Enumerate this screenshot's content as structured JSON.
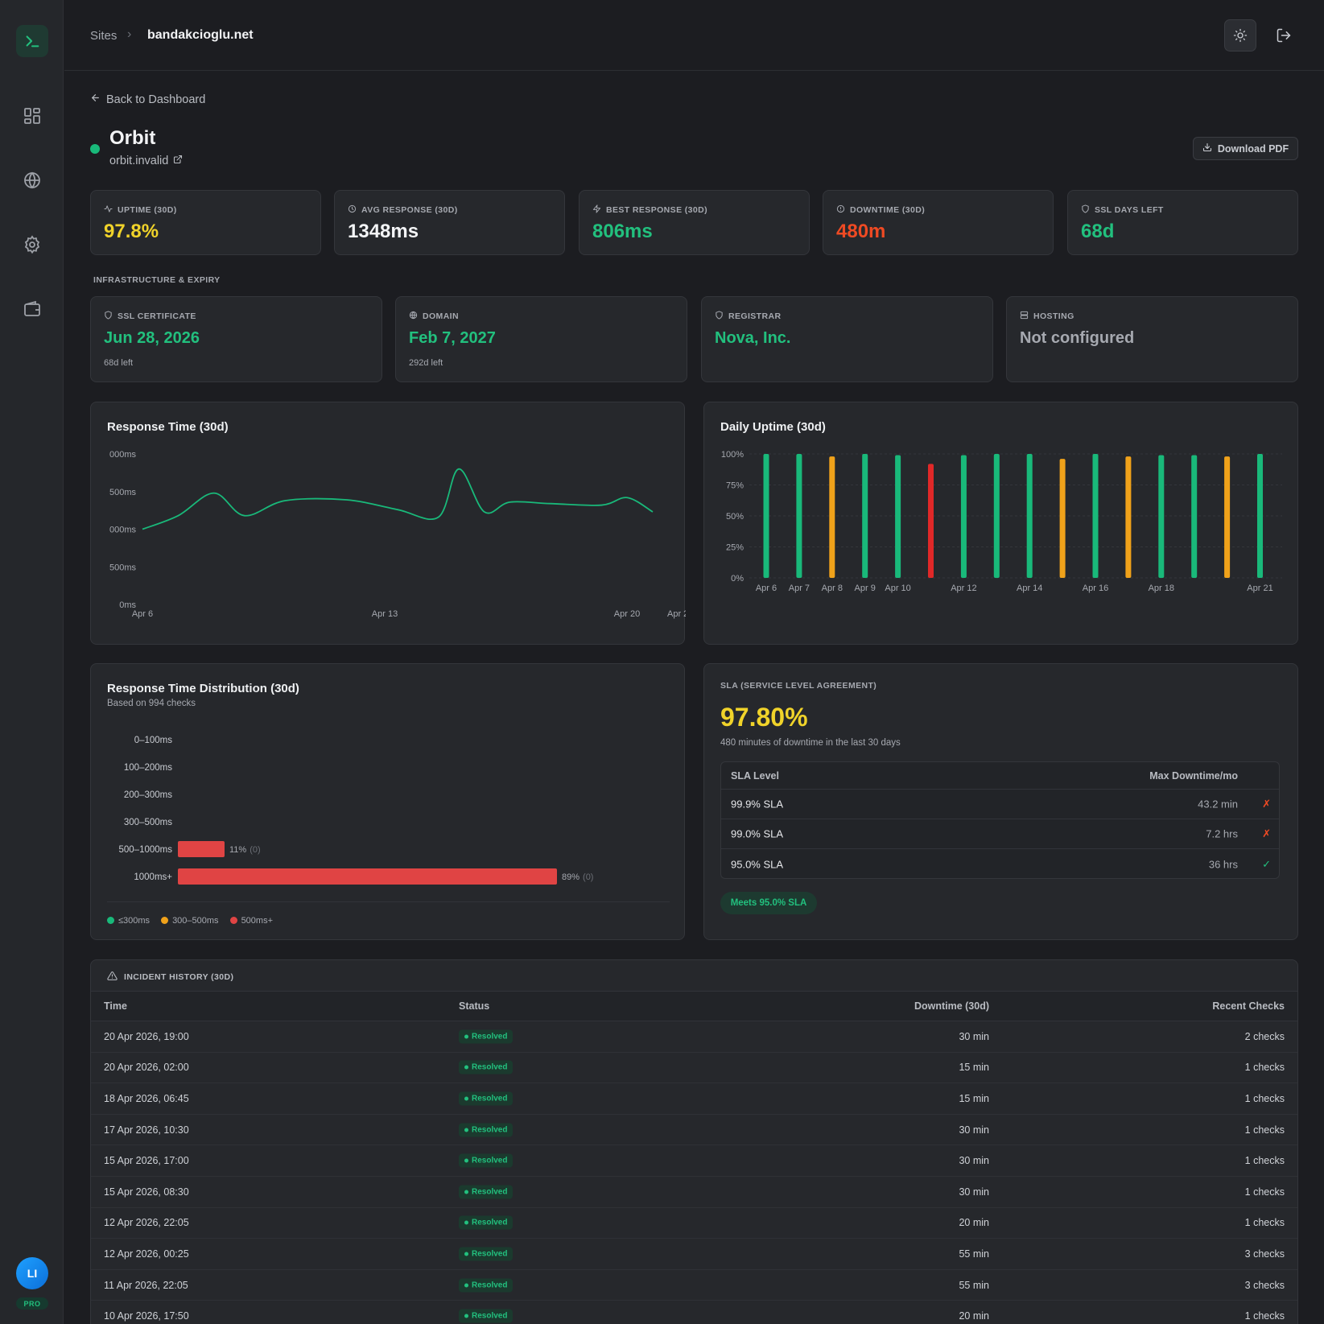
{
  "header": {
    "crumb_root": "Sites",
    "crumb_current": "bandakcioglu.net"
  },
  "nav": {
    "back_label": "Back to Dashboard",
    "download_label": "Download PDF"
  },
  "site": {
    "name": "Orbit",
    "url": "orbit.invalid",
    "status_color": "#19b97a"
  },
  "stats": [
    {
      "label": "UPTIME (30D)",
      "value": "97.8%",
      "color": "#f0d32a",
      "icon": "pulse-icon"
    },
    {
      "label": "AVG RESPONSE (30D)",
      "value": "1348ms",
      "color": "#f3f4f6",
      "icon": "clock-icon"
    },
    {
      "label": "BEST RESPONSE (30D)",
      "value": "806ms",
      "color": "#22c07e",
      "icon": "bolt-icon"
    },
    {
      "label": "DOWNTIME (30D)",
      "value": "480m",
      "color": "#ef4a23",
      "icon": "alert-circle-icon"
    },
    {
      "label": "SSL DAYS LEFT",
      "value": "68d",
      "color": "#22c07e",
      "icon": "shield-icon"
    }
  ],
  "infra": {
    "title": "INFRASTRUCTURE & EXPIRY",
    "items": [
      {
        "label": "SSL CERTIFICATE",
        "value": "Jun 28, 2026",
        "sub": "68d left",
        "color": "#22c07e",
        "icon": "shield-icon"
      },
      {
        "label": "DOMAIN",
        "value": "Feb 7, 2027",
        "sub": "292d left",
        "color": "#22c07e",
        "icon": "globe-icon"
      },
      {
        "label": "REGISTRAR",
        "value": "Nova, Inc.",
        "sub": "",
        "color": "#22c07e",
        "icon": "shield-icon"
      },
      {
        "label": "HOSTING",
        "value": "Not configured",
        "sub": "",
        "color": "#a6a9b0",
        "icon": "server-icon"
      }
    ]
  },
  "response_chart": {
    "title": "Response Time (30d)",
    "y_tick_labels": [
      "000ms",
      "500ms",
      "000ms",
      "500ms",
      "0ms"
    ],
    "x_tick_labels": [
      "Apr 6",
      "Apr 13",
      "Apr 20",
      "Apr 2"
    ]
  },
  "uptime_chart": {
    "title": "Daily Uptime (30d)",
    "y_tick_labels": [
      "100%",
      "75%",
      "50%",
      "25%",
      "0%"
    ]
  },
  "distribution": {
    "title": "Response Time Distribution (30d)",
    "subtitle": "Based on 994 checks",
    "legend": [
      {
        "label": "≤300ms",
        "color": "#19b97a"
      },
      {
        "label": "300–500ms",
        "color": "#f0a21a"
      },
      {
        "label": "500ms+",
        "color": "#e04444"
      }
    ]
  },
  "sla": {
    "label": "SLA (SERVICE LEVEL AGREEMENT)",
    "value": "97.80%",
    "subtitle": "480 minutes of downtime in the last 30 days",
    "col_level": "SLA Level",
    "col_max": "Max Downtime/mo",
    "rows": [
      {
        "level": "99.9% SLA",
        "max": "43.2 min",
        "mark": "✗",
        "color": "#ef4a23"
      },
      {
        "level": "99.0% SLA",
        "max": "7.2 hrs",
        "mark": "✗",
        "color": "#ef4a23"
      },
      {
        "level": "95.0% SLA",
        "max": "36 hrs",
        "mark": "✓",
        "color": "#22c07e"
      }
    ],
    "badge": "Meets 95.0% SLA"
  },
  "incidents": {
    "title": "INCIDENT HISTORY (30D)",
    "columns": {
      "time": "Time",
      "status": "Status",
      "downtime": "Downtime (30d)",
      "checks": "Recent Checks"
    },
    "rows": [
      {
        "time": "20 Apr 2026, 19:00",
        "status": "Resolved",
        "downtime": "30 min",
        "checks": "2 checks"
      },
      {
        "time": "20 Apr 2026, 02:00",
        "status": "Resolved",
        "downtime": "15 min",
        "checks": "1 checks"
      },
      {
        "time": "18 Apr 2026, 06:45",
        "status": "Resolved",
        "downtime": "15 min",
        "checks": "1 checks"
      },
      {
        "time": "17 Apr 2026, 10:30",
        "status": "Resolved",
        "downtime": "30 min",
        "checks": "1 checks"
      },
      {
        "time": "15 Apr 2026, 17:00",
        "status": "Resolved",
        "downtime": "30 min",
        "checks": "1 checks"
      },
      {
        "time": "15 Apr 2026, 08:30",
        "status": "Resolved",
        "downtime": "30 min",
        "checks": "1 checks"
      },
      {
        "time": "12 Apr 2026, 22:05",
        "status": "Resolved",
        "downtime": "20 min",
        "checks": "1 checks"
      },
      {
        "time": "12 Apr 2026, 00:25",
        "status": "Resolved",
        "downtime": "55 min",
        "checks": "3 checks"
      },
      {
        "time": "11 Apr 2026, 22:05",
        "status": "Resolved",
        "downtime": "55 min",
        "checks": "3 checks"
      },
      {
        "time": "10 Apr 2026, 17:50",
        "status": "Resolved",
        "downtime": "20 min",
        "checks": "1 checks"
      }
    ]
  },
  "user": {
    "initials": "LI",
    "plan": "PRO"
  },
  "chart_data": [
    {
      "type": "line",
      "title": "Response Time (30d)",
      "y_tick_labels": [
        "000ms",
        "500ms",
        "000ms",
        "500ms",
        "0ms"
      ],
      "x_tick_labels": [
        "Apr 6",
        "Apr 13",
        "Apr 20",
        "Apr 2"
      ],
      "color": "#19b97a",
      "x": [
        0,
        0.07,
        0.14,
        0.2,
        0.28,
        0.4,
        0.5,
        0.58,
        0.62,
        0.67,
        0.72,
        0.8,
        0.9,
        0.95,
        1
      ],
      "y": [
        1000,
        1180,
        1480,
        1180,
        1380,
        1390,
        1260,
        1160,
        1800,
        1230,
        1360,
        1340,
        1320,
        1420,
        1230
      ],
      "ylim": [
        0,
        2000
      ],
      "grid": false
    },
    {
      "type": "bar",
      "title": "Daily Uptime (30d)",
      "categories": [
        "Apr 6",
        "Apr 7",
        "Apr 8",
        "Apr 9",
        "Apr 10",
        "Apr 11",
        "Apr 12",
        "Apr 13",
        "Apr 14",
        "Apr 15",
        "Apr 16",
        "Apr 17",
        "Apr 18",
        "Apr 19",
        "Apr 20",
        "Apr 21"
      ],
      "x_tick_labels": [
        "Apr 6",
        "Apr 7",
        "Apr 8",
        "Apr 9",
        "Apr 10",
        "",
        "Apr 12",
        "",
        "Apr 14",
        "",
        "Apr 16",
        "",
        "Apr 18",
        "",
        "",
        "Apr 21"
      ],
      "values": [
        100,
        100,
        98,
        100,
        99,
        92,
        99,
        100,
        100,
        96,
        100,
        98,
        99,
        99,
        98,
        100
      ],
      "colors": [
        "#19b97a",
        "#19b97a",
        "#f0a21a",
        "#19b97a",
        "#19b97a",
        "#e02828",
        "#19b97a",
        "#19b97a",
        "#19b97a",
        "#f0a21a",
        "#19b97a",
        "#f0a21a",
        "#19b97a",
        "#19b97a",
        "#f0a21a",
        "#19b97a"
      ],
      "ylabel_ticks": [
        "100%",
        "75%",
        "50%",
        "25%",
        "0%"
      ],
      "ylim": [
        0,
        100
      ],
      "grid": true
    },
    {
      "type": "bar",
      "orientation": "horizontal",
      "title": "Response Time Distribution (30d)",
      "categories": [
        "0–100ms",
        "100–200ms",
        "200–300ms",
        "300–500ms",
        "500–1000ms",
        "1000ms+"
      ],
      "values": [
        0,
        0,
        0,
        0,
        11,
        89
      ],
      "value_labels": [
        "",
        "",
        "",
        "",
        "11%",
        "89%"
      ],
      "count_labels": [
        "",
        "",
        "",
        "",
        "(0)",
        "(0)"
      ],
      "color": "#e04444",
      "xlim": [
        0,
        100
      ]
    }
  ]
}
